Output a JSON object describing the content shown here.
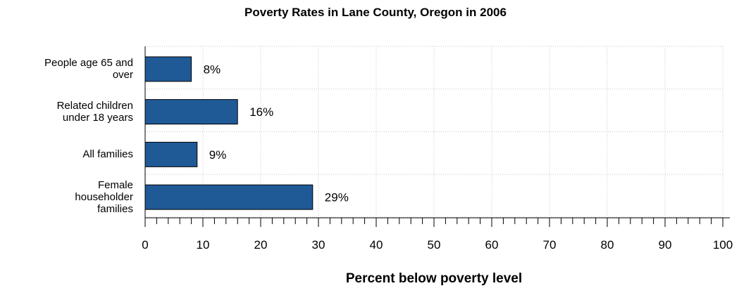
{
  "chart_data": {
    "type": "bar",
    "orientation": "horizontal",
    "title": "Poverty Rates in Lane County, Oregon in 2006",
    "xlabel": "Percent below poverty level",
    "ylabel": "",
    "categories": [
      "People age 65 and\nover",
      "Related children\nunder 18 years",
      "All families",
      "Female\nhouseholder\nfamilies"
    ],
    "values": [
      8,
      16,
      9,
      29
    ],
    "data_labels": [
      "8%",
      "16%",
      "9%",
      "29%"
    ],
    "xlim": [
      0,
      100
    ],
    "x_ticks": [
      "0",
      "10",
      "20",
      "30",
      "40",
      "50",
      "60",
      "70",
      "80",
      "90",
      "100"
    ],
    "grid": true,
    "bar_color": "#1F5A96",
    "grid_color": "#C8C8C8"
  }
}
